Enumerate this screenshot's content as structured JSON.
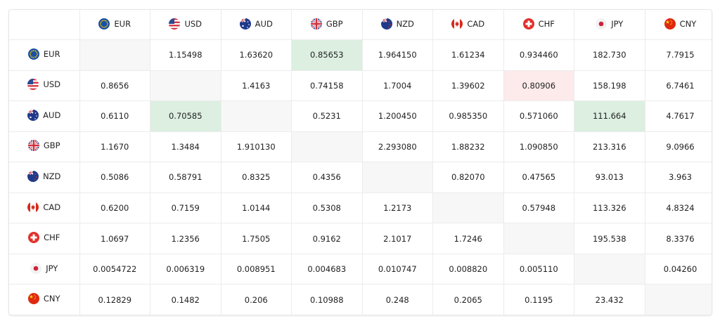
{
  "currencies": [
    "EUR",
    "USD",
    "AUD",
    "GBP",
    "NZD",
    "CAD",
    "CHF",
    "JPY",
    "CNY"
  ],
  "flag_icons": {
    "EUR": "eu-flag-icon",
    "USD": "us-flag-icon",
    "AUD": "au-flag-icon",
    "GBP": "gb-flag-icon",
    "NZD": "nz-flag-icon",
    "CAD": "ca-flag-icon",
    "CHF": "ch-flag-icon",
    "JPY": "jp-flag-icon",
    "CNY": "cn-flag-icon"
  },
  "colors": {
    "highlight_green": "#dcefe1",
    "highlight_red": "#fdeaea",
    "empty_cell": "#f7f7f7"
  },
  "rows": [
    {
      "currency": "EUR",
      "values": [
        "",
        "1.15498",
        "1.63620",
        "0.85653",
        "1.964150",
        "1.61234",
        "0.934460",
        "182.730",
        "7.7915"
      ]
    },
    {
      "currency": "USD",
      "values": [
        "0.8656",
        "",
        "1.4163",
        "0.74158",
        "1.7004",
        "1.39602",
        "0.80906",
        "158.198",
        "6.7461"
      ]
    },
    {
      "currency": "AUD",
      "values": [
        "0.6110",
        "0.70585",
        "",
        "0.5231",
        "1.200450",
        "0.985350",
        "0.571060",
        "111.664",
        "4.7617"
      ]
    },
    {
      "currency": "GBP",
      "values": [
        "1.1670",
        "1.3484",
        "1.910130",
        "",
        "2.293080",
        "1.88232",
        "1.090850",
        "213.316",
        "9.0966"
      ]
    },
    {
      "currency": "NZD",
      "values": [
        "0.5086",
        "0.58791",
        "0.8325",
        "0.4356",
        "",
        "0.82070",
        "0.47565",
        "93.013",
        "3.963"
      ]
    },
    {
      "currency": "CAD",
      "values": [
        "0.6200",
        "0.7159",
        "1.0144",
        "0.5308",
        "1.2173",
        "",
        "0.57948",
        "113.326",
        "4.8324"
      ]
    },
    {
      "currency": "CHF",
      "values": [
        "1.0697",
        "1.2356",
        "1.7505",
        "0.9162",
        "2.1017",
        "1.7246",
        "",
        "195.538",
        "8.3376"
      ]
    },
    {
      "currency": "JPY",
      "values": [
        "0.0054722",
        "0.006319",
        "0.008951",
        "0.004683",
        "0.010747",
        "0.008820",
        "0.005110",
        "",
        "0.04260"
      ]
    },
    {
      "currency": "CNY",
      "values": [
        "0.12829",
        "0.1482",
        "0.206",
        "0.10988",
        "0.248",
        "0.2065",
        "0.1195",
        "23.432",
        ""
      ]
    }
  ],
  "highlights": [
    {
      "row": 0,
      "col": 3,
      "type": "green"
    },
    {
      "row": 1,
      "col": 6,
      "type": "red"
    },
    {
      "row": 2,
      "col": 1,
      "type": "green"
    },
    {
      "row": 2,
      "col": 7,
      "type": "green"
    }
  ]
}
